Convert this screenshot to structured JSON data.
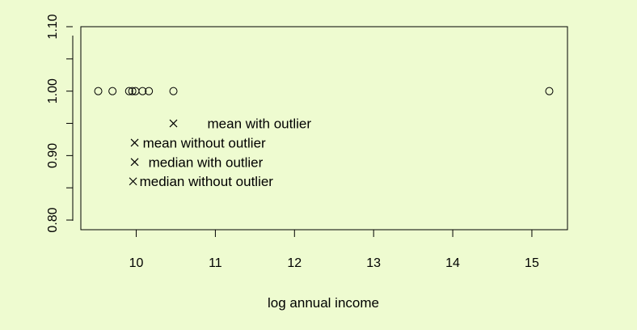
{
  "chart_data": {
    "type": "scatter",
    "xlabel": "log annual income",
    "ylabel": "",
    "xlim": [
      9.3,
      15.45
    ],
    "ylim": [
      0.785,
      1.1
    ],
    "x_ticks": [
      10,
      11,
      12,
      13,
      14,
      15
    ],
    "y_ticks": [
      0.8,
      0.85,
      0.9,
      0.95,
      1.0,
      1.05,
      1.1
    ],
    "y_tick_labels": [
      {
        "value": 0.8,
        "label": "0.80"
      },
      {
        "value": 0.9,
        "label": "0.90"
      },
      {
        "value": 1.0,
        "label": "1.00"
      },
      {
        "value": 1.1,
        "label": "1.10"
      }
    ],
    "grid": false,
    "points": [
      {
        "x": 9.52,
        "y": 1.0
      },
      {
        "x": 9.7,
        "y": 1.0
      },
      {
        "x": 9.91,
        "y": 1.0
      },
      {
        "x": 9.95,
        "y": 1.0
      },
      {
        "x": 9.99,
        "y": 1.0
      },
      {
        "x": 10.08,
        "y": 1.0
      },
      {
        "x": 10.16,
        "y": 1.0
      },
      {
        "x": 10.47,
        "y": 1.0
      },
      {
        "x": 15.22,
        "y": 1.0
      }
    ],
    "annotations": [
      {
        "x": 10.47,
        "y": 0.95,
        "text": "mean with outlier"
      },
      {
        "x": 9.98,
        "y": 0.92,
        "text": "mean without outlier"
      },
      {
        "x": 9.98,
        "y": 0.89,
        "text": "median with outlier"
      },
      {
        "x": 9.96,
        "y": 0.86,
        "text": "median without outlier"
      }
    ]
  }
}
